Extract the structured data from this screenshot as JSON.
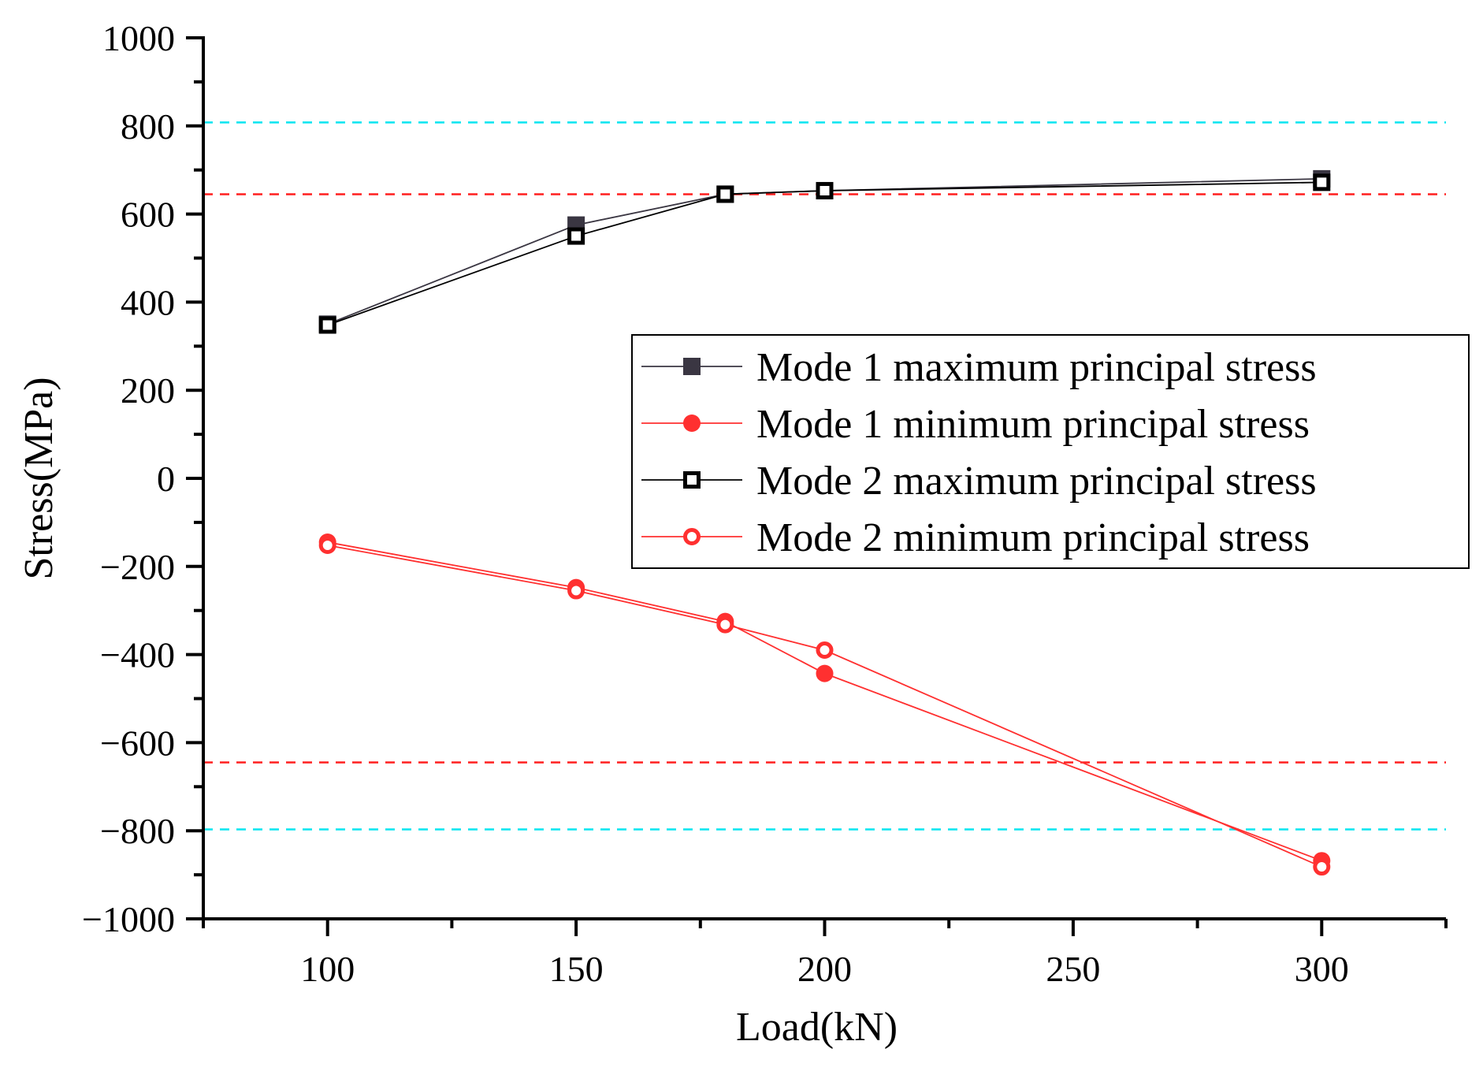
{
  "chart_data": {
    "type": "line",
    "title": "",
    "xlabel": "Load(kN)",
    "ylabel": "Stress(MPa)",
    "xlim": [
      75,
      325
    ],
    "ylim": [
      -1000,
      1000
    ],
    "xticks": [
      100,
      150,
      200,
      250,
      300
    ],
    "yticks": [
      1000,
      800,
      600,
      400,
      200,
      0,
      -200,
      -400,
      -600,
      -800,
      -1000
    ],
    "xtick_labels": [
      "100",
      "150",
      "200",
      "250",
      "300"
    ],
    "ytick_labels": [
      "1000",
      "800",
      "600",
      "400",
      "200",
      "0",
      "−200",
      "−400",
      "−600",
      "−800",
      "−1000"
    ],
    "grid": false,
    "legend_position": "center-right",
    "reference_lines": [
      {
        "y": 808,
        "style": "dashed",
        "color": "#00e5f0"
      },
      {
        "y": 645,
        "style": "dashed",
        "color": "#ff1f1f"
      },
      {
        "y": -645,
        "style": "dashed",
        "color": "#ff1f1f"
      },
      {
        "y": -797,
        "style": "dashed",
        "color": "#00e5f0"
      }
    ],
    "series": [
      {
        "name": "Mode 1 maximum principal stress",
        "color": "#3a3642",
        "marker": "square-filled",
        "x": [
          100,
          150,
          180,
          200,
          300
        ],
        "y": [
          350,
          575,
          645,
          653,
          680
        ]
      },
      {
        "name": "Mode 1 minimum principal stress",
        "color": "#ff3030",
        "marker": "circle-filled",
        "x": [
          100,
          150,
          180,
          200,
          300
        ],
        "y": [
          -145,
          -248,
          -325,
          -443,
          -868
        ]
      },
      {
        "name": "Mode 2 maximum principal stress",
        "color": "#000000",
        "marker": "square-open",
        "x": [
          100,
          150,
          180,
          200,
          300
        ],
        "y": [
          348,
          550,
          645,
          653,
          672
        ]
      },
      {
        "name": "Mode 2 minimum principal stress",
        "color": "#ff3030",
        "marker": "circle-open",
        "x": [
          100,
          150,
          180,
          200,
          300
        ],
        "y": [
          -152,
          -255,
          -332,
          -390,
          -882
        ]
      }
    ]
  }
}
